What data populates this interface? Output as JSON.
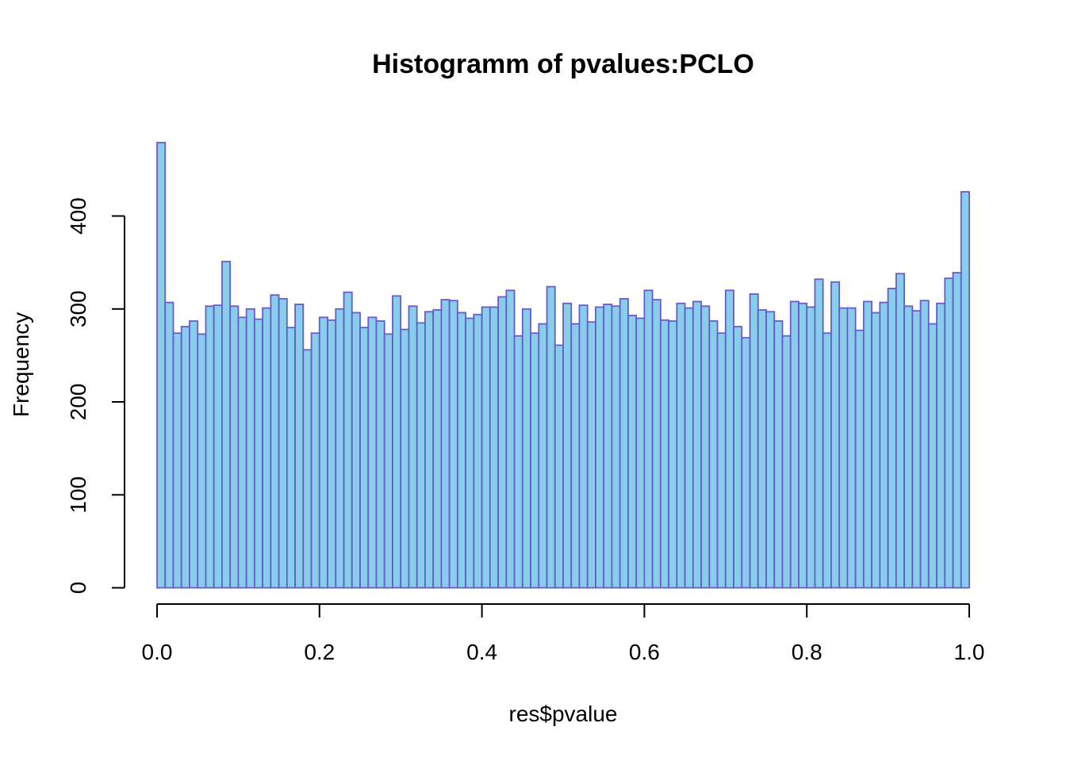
{
  "chart_data": {
    "type": "bar",
    "title": "Histogramm of pvalues:PCLO",
    "xlabel": "res$pvalue",
    "ylabel": "Frequency",
    "xlim": [
      0,
      1
    ],
    "ylim": [
      0,
      480
    ],
    "bin_width": 0.01,
    "x_ticks": [
      "0.0",
      "0.2",
      "0.4",
      "0.6",
      "0.8",
      "1.0"
    ],
    "y_ticks": [
      "0",
      "100",
      "200",
      "300",
      "400"
    ],
    "grid": false,
    "legend": "none",
    "bar_fill": "#87ceeb",
    "bar_stroke": "#6a5acd",
    "values": [
      479,
      307,
      274,
      281,
      287,
      273,
      303,
      304,
      351,
      303,
      291,
      300,
      289,
      301,
      315,
      311,
      280,
      305,
      256,
      274,
      291,
      288,
      300,
      318,
      296,
      280,
      291,
      287,
      273,
      314,
      278,
      303,
      285,
      297,
      299,
      310,
      309,
      296,
      290,
      294,
      302,
      302,
      313,
      320,
      271,
      300,
      274,
      284,
      324,
      261,
      306,
      284,
      304,
      286,
      302,
      305,
      303,
      311,
      293,
      290,
      320,
      310,
      288,
      287,
      306,
      301,
      308,
      303,
      287,
      274,
      320,
      281,
      269,
      316,
      299,
      297,
      287,
      271,
      308,
      306,
      302,
      332,
      274,
      329,
      301,
      301,
      277,
      308,
      296,
      307,
      322,
      338,
      303,
      298,
      309,
      284,
      306,
      333,
      339,
      426
    ]
  }
}
